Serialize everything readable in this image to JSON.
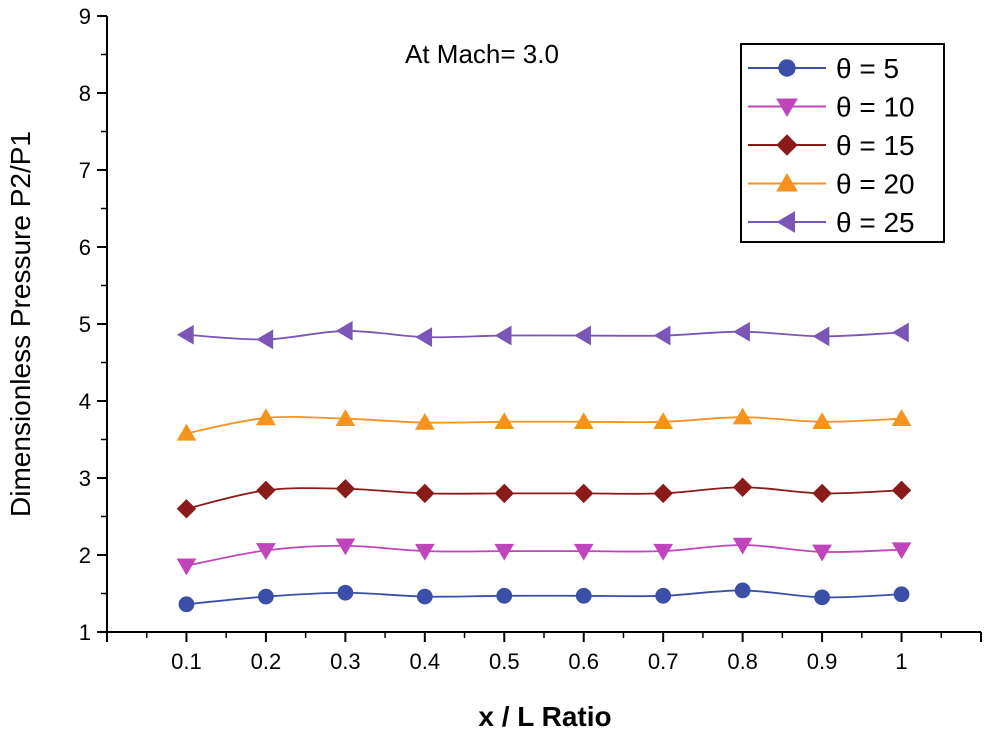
{
  "chart_data": {
    "type": "line",
    "title": "",
    "annotation": "At Mach= 3.0",
    "xlabel": "x / L Ratio",
    "ylabel": "Dimensionless Pressure P2/P1",
    "xlim": [
      0,
      1.1
    ],
    "ylim": [
      1,
      9
    ],
    "x_ticks": [
      0.1,
      0.2,
      0.3,
      0.4,
      0.5,
      0.6,
      0.7,
      0.8,
      0.9,
      1
    ],
    "x_tick_labels": [
      "0.1",
      "0.2",
      "0.3",
      "0.4",
      "0.5",
      "0.6",
      "0.7",
      "0.8",
      "0.9",
      "1"
    ],
    "y_ticks": [
      1,
      2,
      3,
      4,
      5,
      6,
      7,
      8,
      9
    ],
    "y_tick_labels": [
      "1",
      "2",
      "3",
      "4",
      "5",
      "6",
      "7",
      "8",
      "9"
    ],
    "grid": false,
    "legend_position": "top-right",
    "x": [
      0.1,
      0.2,
      0.3,
      0.4,
      0.5,
      0.6,
      0.7,
      0.8,
      0.9,
      1.0
    ],
    "series": [
      {
        "name": "θ = 5",
        "marker": "circle",
        "color": "#3b4fa8",
        "values": [
          1.36,
          1.46,
          1.51,
          1.46,
          1.47,
          1.47,
          1.47,
          1.54,
          1.45,
          1.49
        ]
      },
      {
        "name": "θ = 10",
        "marker": "triangle-down",
        "color": "#c044bb",
        "values": [
          1.86,
          2.06,
          2.12,
          2.05,
          2.05,
          2.05,
          2.05,
          2.13,
          2.04,
          2.07
        ]
      },
      {
        "name": "θ = 15",
        "marker": "diamond",
        "color": "#8b1a1a",
        "values": [
          2.6,
          2.84,
          2.86,
          2.8,
          2.8,
          2.8,
          2.8,
          2.88,
          2.8,
          2.84
        ]
      },
      {
        "name": "θ = 20",
        "marker": "triangle-up",
        "color": "#f7921e",
        "values": [
          3.58,
          3.78,
          3.77,
          3.72,
          3.73,
          3.73,
          3.73,
          3.79,
          3.73,
          3.77
        ]
      },
      {
        "name": "θ = 25",
        "marker": "triangle-left",
        "color": "#7b55b8",
        "values": [
          4.86,
          4.8,
          4.91,
          4.83,
          4.85,
          4.85,
          4.85,
          4.9,
          4.84,
          4.89
        ]
      }
    ]
  }
}
